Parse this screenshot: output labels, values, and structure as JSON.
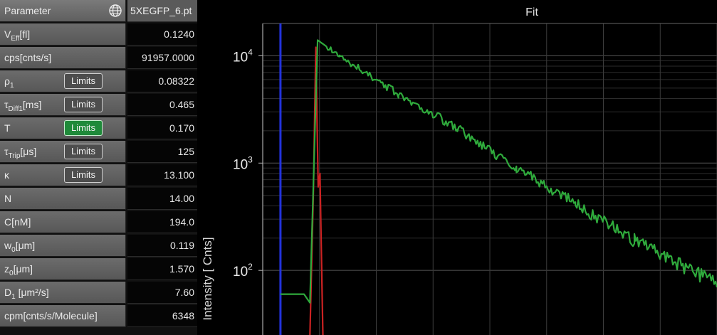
{
  "table": {
    "header": {
      "param_label": "Parameter",
      "file_label": "5XEGFP_6.pt"
    },
    "rows": [
      {
        "label": "V",
        "sub": "Eff",
        "unit": "[fl]",
        "value": "0.1240"
      },
      {
        "label": "cps[cnts/s]",
        "value": "91957.0000"
      },
      {
        "label": "ρ",
        "sub": "1",
        "value": "0.08322",
        "limits": "Limits"
      },
      {
        "label": "τ",
        "sub": "Diff1",
        "unit": "[ms]",
        "value": "0.465",
        "limits": "Limits"
      },
      {
        "label": "T",
        "value": "0.170",
        "limits": "Limits",
        "limits_active": true
      },
      {
        "label": "τ",
        "sub": "Trip",
        "unit": "[μs]",
        "value": "125",
        "limits": "Limits"
      },
      {
        "label": "κ",
        "value": "13.100",
        "limits": "Limits"
      },
      {
        "label": "N",
        "value": "14.00"
      },
      {
        "label": "C[nM]",
        "value": "194.0"
      },
      {
        "label": "w",
        "sub": "0",
        "unit": "[μm]",
        "value": "0.119"
      },
      {
        "label": "z",
        "sub": "0",
        "unit": "[μm]",
        "value": "1.570"
      },
      {
        "label": "D",
        "sub": "1",
        "unit": " [μm²/s]",
        "value": "7.60"
      },
      {
        "label": "cpm[cnts/s/Molecule]",
        "value": "6348"
      }
    ]
  },
  "chart_data": {
    "type": "line",
    "title": "Fit",
    "xlabel": "",
    "ylabel": "Intensity [ Cnts]",
    "yscale": "log",
    "ylim": [
      25,
      20000
    ],
    "yticks": [
      {
        "value": 10000,
        "base": "10",
        "exp": "4"
      },
      {
        "value": 1000,
        "base": "10",
        "exp": "3"
      },
      {
        "value": 100,
        "base": "10",
        "exp": "2"
      }
    ],
    "grid": true,
    "series": [
      {
        "color": "#2233dd",
        "points": [
          [
            0.0,
            25
          ],
          [
            0.0,
            20000
          ]
        ]
      },
      {
        "color": "#cc2222",
        "points": [
          [
            5.0,
            25
          ],
          [
            5.6,
            600
          ],
          [
            6.0,
            12000
          ],
          [
            6.4,
            600
          ],
          [
            6.7,
            800
          ],
          [
            7.2,
            25
          ]
        ]
      },
      {
        "color": "#2faa3c",
        "points": [
          [
            0.0,
            60
          ],
          [
            4.0,
            60
          ],
          [
            5.0,
            50
          ],
          [
            6.3,
            14000
          ],
          [
            10.0,
            10000
          ],
          [
            20.0,
            4400
          ],
          [
            30.0,
            2100
          ],
          [
            40.0,
            900
          ],
          [
            50.0,
            420
          ],
          [
            60.0,
            190
          ],
          [
            74.0,
            75
          ]
        ]
      }
    ],
    "x_range": [
      -3,
      74
    ]
  }
}
